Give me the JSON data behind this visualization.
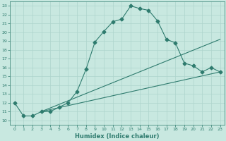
{
  "xlabel": "Humidex (Indice chaleur)",
  "ylabel": "",
  "bg_color": "#c8e8e0",
  "grid_color": "#aed4cc",
  "line_color": "#2e7b6e",
  "xlim": [
    -0.5,
    23.5
  ],
  "ylim": [
    9.5,
    23.5
  ],
  "xticks": [
    0,
    1,
    2,
    3,
    4,
    5,
    6,
    7,
    8,
    9,
    10,
    11,
    12,
    13,
    14,
    15,
    16,
    17,
    18,
    19,
    20,
    21,
    22,
    23
  ],
  "yticks": [
    10,
    11,
    12,
    13,
    14,
    15,
    16,
    17,
    18,
    19,
    20,
    21,
    22,
    23
  ],
  "curve1_x": [
    0,
    1,
    2,
    3,
    4,
    5,
    6,
    7,
    8,
    9,
    10,
    11,
    12,
    13,
    14,
    15,
    16,
    17,
    18,
    19,
    20,
    21,
    22,
    23
  ],
  "curve1_y": [
    12.0,
    10.5,
    10.5,
    11.0,
    11.0,
    11.5,
    12.0,
    13.3,
    15.8,
    18.9,
    20.1,
    21.2,
    21.5,
    23.0,
    22.7,
    22.5,
    21.3,
    19.2,
    18.8,
    16.5,
    16.2,
    15.5,
    16.0,
    15.5
  ],
  "curve2_x": [
    3,
    23
  ],
  "curve2_y": [
    11.0,
    19.2
  ],
  "curve3_x": [
    3,
    23
  ],
  "curve3_y": [
    11.0,
    15.5
  ],
  "marker_style": "D",
  "marker_size": 2.5,
  "tick_fontsize": 4.5,
  "xlabel_fontsize": 6.0
}
